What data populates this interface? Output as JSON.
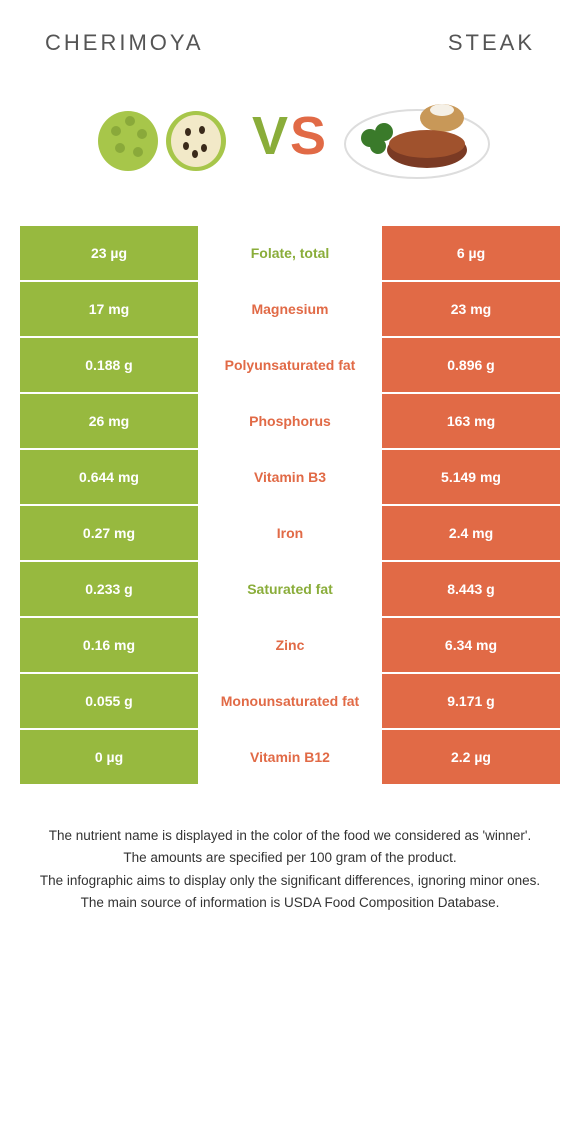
{
  "header": {
    "left_title": "CHERIMOYA",
    "right_title": "STEAK"
  },
  "vs": {
    "v": "V",
    "s": "S"
  },
  "colors": {
    "left": "#97b93f",
    "right": "#e16a46",
    "left_text": "#8aad3a",
    "right_text": "#e16a46"
  },
  "rows": [
    {
      "left": "23 µg",
      "name": "Folate, total",
      "winner": "left",
      "right": "6 µg"
    },
    {
      "left": "17 mg",
      "name": "Magnesium",
      "winner": "right",
      "right": "23 mg"
    },
    {
      "left": "0.188 g",
      "name": "Polyunsaturated fat",
      "winner": "right",
      "right": "0.896 g"
    },
    {
      "left": "26 mg",
      "name": "Phosphorus",
      "winner": "right",
      "right": "163 mg"
    },
    {
      "left": "0.644 mg",
      "name": "Vitamin B3",
      "winner": "right",
      "right": "5.149 mg"
    },
    {
      "left": "0.27 mg",
      "name": "Iron",
      "winner": "right",
      "right": "2.4 mg"
    },
    {
      "left": "0.233 g",
      "name": "Saturated fat",
      "winner": "left",
      "right": "8.443 g"
    },
    {
      "left": "0.16 mg",
      "name": "Zinc",
      "winner": "right",
      "right": "6.34 mg"
    },
    {
      "left": "0.055 g",
      "name": "Monounsaturated fat",
      "winner": "right",
      "right": "9.171 g"
    },
    {
      "left": "0 µg",
      "name": "Vitamin B12",
      "winner": "right",
      "right": "2.2 µg"
    }
  ],
  "footer": {
    "line1": "The nutrient name is displayed in the color of the food we considered as 'winner'.",
    "line2": "The amounts are specified per 100 gram of the product.",
    "line3": "The infographic aims to display only the significant differences, ignoring minor ones.",
    "line4": "The main source of information is USDA Food Composition Database."
  }
}
